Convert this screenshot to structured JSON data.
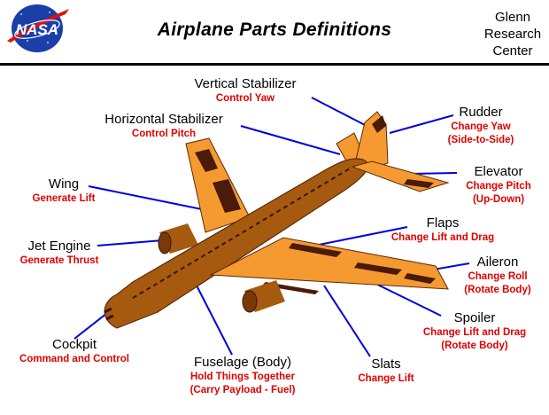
{
  "logo_text": "NASA",
  "title": "Airplane Parts Definitions",
  "center": [
    "Glenn",
    "Research",
    "Center"
  ],
  "colors": {
    "body": "#a65a0f",
    "wing": "#f59a30",
    "dark": "#4a1a0a",
    "leader": "#0000dd",
    "definition": "#e00000"
  },
  "parts": {
    "vertical_stabilizer": {
      "name": "Vertical Stabilizer",
      "def": [
        "Control Yaw"
      ]
    },
    "horizontal_stabilizer": {
      "name": "Horizontal Stabilizer",
      "def": [
        "Control Pitch"
      ]
    },
    "rudder": {
      "name": "Rudder",
      "def": [
        "Change Yaw",
        "(Side-to-Side)"
      ]
    },
    "elevator": {
      "name": "Elevator",
      "def": [
        "Change Pitch",
        "(Up-Down)"
      ]
    },
    "wing": {
      "name": "Wing",
      "def": [
        "Generate Lift"
      ]
    },
    "flaps": {
      "name": "Flaps",
      "def": [
        "Change Lift and Drag"
      ]
    },
    "jet_engine": {
      "name": "Jet Engine",
      "def": [
        "Generate Thrust"
      ]
    },
    "aileron": {
      "name": "Aileron",
      "def": [
        "Change Roll",
        "(Rotate Body)"
      ]
    },
    "spoiler": {
      "name": "Spoiler",
      "def": [
        "Change Lift and Drag",
        "(Rotate Body)"
      ]
    },
    "cockpit": {
      "name": "Cockpit",
      "def": [
        "Command and Control"
      ]
    },
    "fuselage": {
      "name": "Fuselage (Body)",
      "def": [
        "Hold Things Together",
        "(Carry Payload - Fuel)"
      ]
    },
    "slats": {
      "name": "Slats",
      "def": [
        "Change Lift"
      ]
    }
  }
}
